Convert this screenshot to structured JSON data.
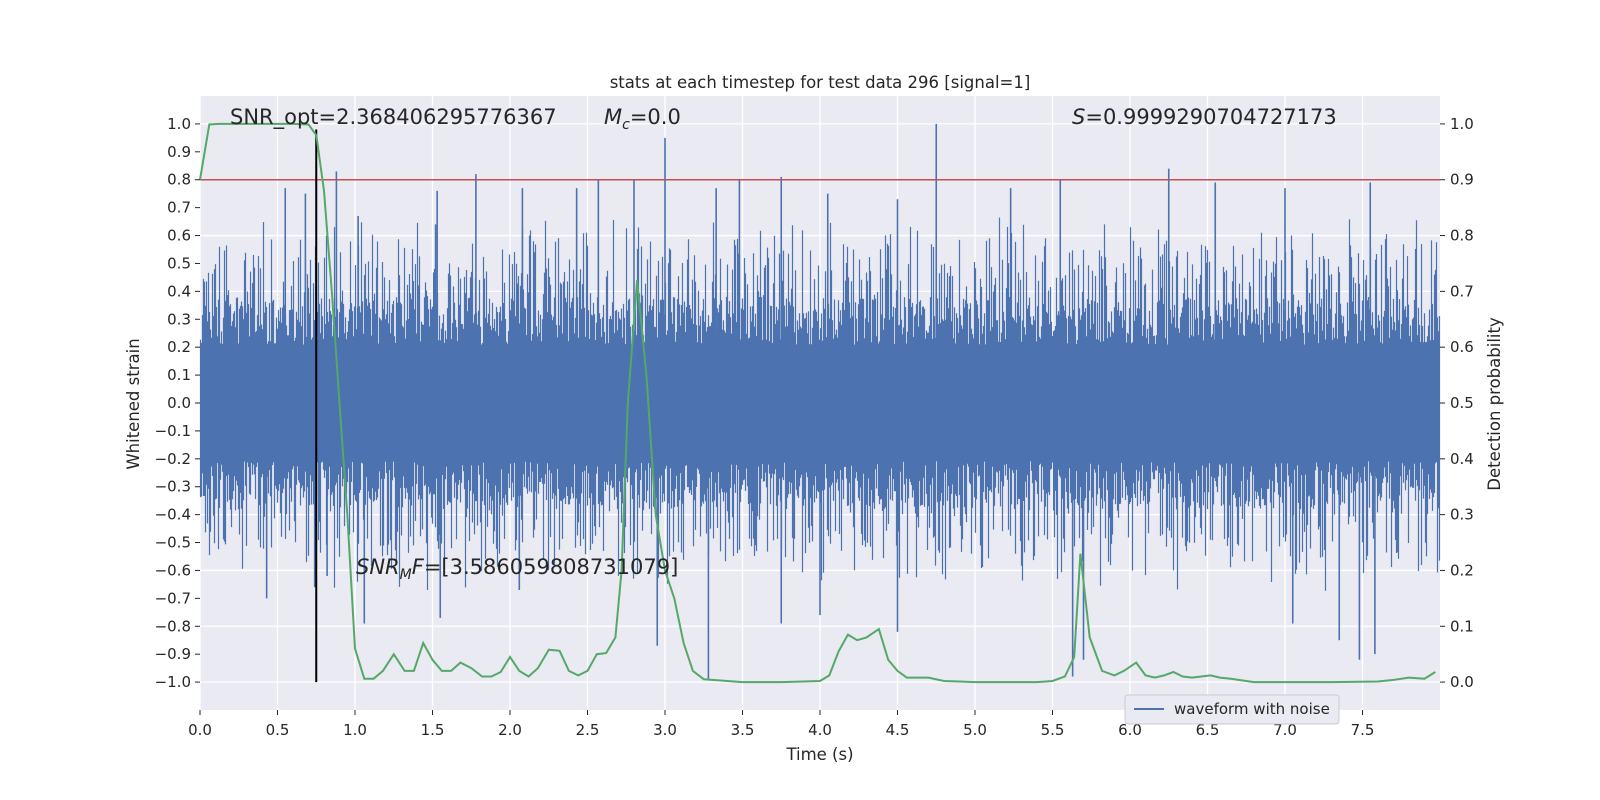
{
  "chart_data": {
    "type": "line",
    "title": "stats at each timestep for test data 296 [signal=1]",
    "xlabel": "Time (s)",
    "ylabel_left": "Whitened strain",
    "ylabel_right": "Detection probability",
    "xlim": [
      0.0,
      8.0
    ],
    "ylim_left": [
      -1.1,
      1.1
    ],
    "ylim_right": [
      -0.05,
      1.05
    ],
    "x_ticks": [
      "0.0",
      "0.5",
      "1.0",
      "1.5",
      "2.0",
      "2.5",
      "3.0",
      "3.5",
      "4.0",
      "4.5",
      "5.0",
      "5.5",
      "6.0",
      "6.5",
      "7.0",
      "7.5"
    ],
    "y_ticks_left": [
      "1.0",
      "0.9",
      "0.8",
      "0.7",
      "0.6",
      "0.5",
      "0.4",
      "0.3",
      "0.2",
      "0.1",
      "0.0",
      "−0.1",
      "−0.2",
      "−0.3",
      "−0.4",
      "−0.5",
      "−0.6",
      "−0.7",
      "−0.8",
      "−0.9",
      "−1.0"
    ],
    "y_ticks_right": [
      "1.0",
      "0.9",
      "0.8",
      "0.7",
      "0.6",
      "0.5",
      "0.4",
      "0.3",
      "0.2",
      "0.1",
      "0.0"
    ],
    "annotations": {
      "snr_opt": "SNR_opt=2.368406295776367",
      "mc_symbol": "M",
      "mc_sub": "c",
      "mc_value": "=0.0",
      "s_symbol": "S",
      "s_value": "=0.9999290704727173",
      "snr_mf_symbol": "SNR",
      "snr_mf_sub": "M",
      "snr_mf_sym2": "F",
      "snr_mf_value": "=[3.586059808731079]"
    },
    "threshold_line": {
      "value": 0.9,
      "axis": "right",
      "color": "#c44e52"
    },
    "marker_line": {
      "x": 0.75,
      "y_range": [
        -1.0,
        0.98
      ],
      "color": "#000000"
    },
    "series": [
      {
        "name": "waveform with noise",
        "axis": "left",
        "color": "#4c72b0",
        "noise_envelope": 0.38,
        "spikes": [
          {
            "x": 0.55,
            "y": 0.77
          },
          {
            "x": 0.68,
            "y": 0.75
          },
          {
            "x": 0.88,
            "y": 0.83
          },
          {
            "x": 1.02,
            "y": 0.67
          },
          {
            "x": 1.52,
            "y": 0.64
          },
          {
            "x": 1.53,
            "y": 0.76
          },
          {
            "x": 1.78,
            "y": 0.82
          },
          {
            "x": 2.08,
            "y": 0.77
          },
          {
            "x": 2.43,
            "y": 0.77
          },
          {
            "x": 2.57,
            "y": 0.8
          },
          {
            "x": 2.8,
            "y": 0.8
          },
          {
            "x": 3.0,
            "y": 0.95
          },
          {
            "x": 3.33,
            "y": 0.77
          },
          {
            "x": 3.48,
            "y": 0.8
          },
          {
            "x": 3.75,
            "y": 0.81
          },
          {
            "x": 4.05,
            "y": 0.75
          },
          {
            "x": 4.5,
            "y": 0.73
          },
          {
            "x": 4.75,
            "y": 1.0
          },
          {
            "x": 5.23,
            "y": 0.77
          },
          {
            "x": 5.55,
            "y": 0.8
          },
          {
            "x": 6.25,
            "y": 0.84
          },
          {
            "x": 6.55,
            "y": 0.79
          },
          {
            "x": 7.0,
            "y": 0.77
          },
          {
            "x": 7.55,
            "y": 0.79
          },
          {
            "x": 0.43,
            "y": -0.7
          },
          {
            "x": 0.74,
            "y": -0.66
          },
          {
            "x": 0.82,
            "y": -0.62
          },
          {
            "x": 1.06,
            "y": -0.79
          },
          {
            "x": 1.55,
            "y": -0.77
          },
          {
            "x": 2.06,
            "y": -0.67
          },
          {
            "x": 2.95,
            "y": -0.87
          },
          {
            "x": 3.28,
            "y": -0.99
          },
          {
            "x": 3.75,
            "y": -0.79
          },
          {
            "x": 4.0,
            "y": -0.76
          },
          {
            "x": 4.5,
            "y": -0.82
          },
          {
            "x": 5.63,
            "y": -0.98
          },
          {
            "x": 5.7,
            "y": -0.92
          },
          {
            "x": 7.05,
            "y": -0.79
          },
          {
            "x": 7.35,
            "y": -0.85
          },
          {
            "x": 7.48,
            "y": -0.92
          },
          {
            "x": 7.58,
            "y": -0.9
          }
        ]
      },
      {
        "name": "detection probability",
        "axis": "right",
        "color": "#55a868",
        "x": [
          0.0,
          0.06,
          0.12,
          0.2,
          0.3,
          0.4,
          0.5,
          0.6,
          0.7,
          0.75,
          0.8,
          0.85,
          0.9,
          0.95,
          1.0,
          1.06,
          1.12,
          1.18,
          1.25,
          1.32,
          1.38,
          1.44,
          1.5,
          1.56,
          1.62,
          1.68,
          1.75,
          1.82,
          1.88,
          1.94,
          2.0,
          2.06,
          2.12,
          2.18,
          2.25,
          2.32,
          2.38,
          2.44,
          2.5,
          2.56,
          2.62,
          2.68,
          2.72,
          2.76,
          2.82,
          2.88,
          2.94,
          3.0,
          3.06,
          3.12,
          3.18,
          3.25,
          3.5,
          3.75,
          4.0,
          4.06,
          4.12,
          4.18,
          4.24,
          4.3,
          4.38,
          4.44,
          4.5,
          4.56,
          4.62,
          4.7,
          4.8,
          4.9,
          5.0,
          5.2,
          5.4,
          5.5,
          5.58,
          5.64,
          5.68,
          5.74,
          5.82,
          5.9,
          5.96,
          6.04,
          6.1,
          6.16,
          6.22,
          6.28,
          6.34,
          6.4,
          6.46,
          6.52,
          6.58,
          6.65,
          6.8,
          7.0,
          7.3,
          7.6,
          7.7,
          7.8,
          7.9,
          7.97
        ],
        "y": [
          0.9,
          0.999,
          1.0,
          1.0,
          1.0,
          1.0,
          1.0,
          1.0,
          0.999,
          0.98,
          0.88,
          0.7,
          0.5,
          0.3,
          0.06,
          0.006,
          0.006,
          0.02,
          0.05,
          0.02,
          0.02,
          0.07,
          0.04,
          0.02,
          0.02,
          0.035,
          0.025,
          0.01,
          0.01,
          0.018,
          0.045,
          0.02,
          0.01,
          0.025,
          0.058,
          0.056,
          0.02,
          0.012,
          0.02,
          0.05,
          0.052,
          0.08,
          0.2,
          0.5,
          0.72,
          0.55,
          0.3,
          0.2,
          0.15,
          0.07,
          0.02,
          0.005,
          0.0,
          0.0,
          0.002,
          0.012,
          0.055,
          0.085,
          0.075,
          0.08,
          0.095,
          0.04,
          0.02,
          0.008,
          0.008,
          0.008,
          0.002,
          0.001,
          0.0,
          0.0,
          0.0,
          0.002,
          0.01,
          0.045,
          0.23,
          0.08,
          0.02,
          0.012,
          0.02,
          0.035,
          0.012,
          0.008,
          0.012,
          0.018,
          0.01,
          0.008,
          0.01,
          0.012,
          0.008,
          0.006,
          0.0,
          0.0,
          0.0,
          0.001,
          0.004,
          0.008,
          0.006,
          0.018
        ]
      }
    ],
    "legend": {
      "placement": "lower-right",
      "entries": [
        "waveform with noise"
      ]
    }
  }
}
